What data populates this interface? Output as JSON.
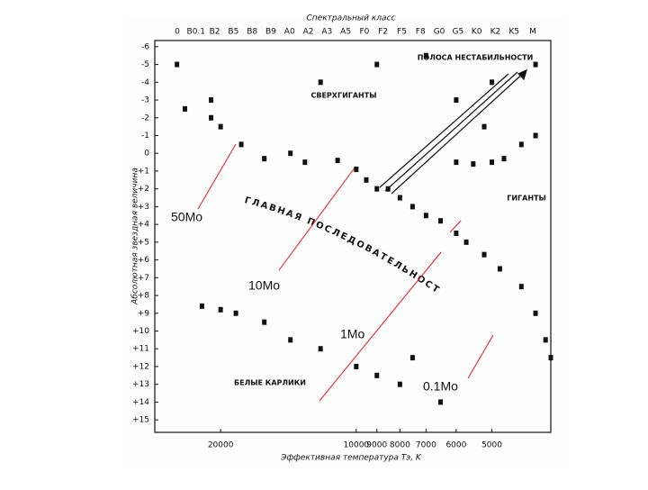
{
  "chart_data": {
    "type": "scatter",
    "title": "Спектральный класс",
    "x_label": "Эффективная температура Tэ, K",
    "y_label": "Абсолютная звездная величина",
    "spectral_classes": [
      "0",
      "B0.1",
      "B2",
      "B5",
      "B8",
      "B9",
      "A0",
      "A2",
      "A3",
      "A5",
      "F0",
      "F2",
      "F5",
      "F8",
      "G0",
      "G5",
      "K0",
      "K2",
      "K5",
      "M"
    ],
    "annotations": [
      "ПОЛОСА НЕСТАБИЛЬНОСТИ",
      "СВЕРХГИГАНТЫ",
      "ГИГАНТЫ",
      "ГЛАВНАЯ ПОСЛЕДОВАТЕЛЬНОСТЬ",
      "БЕЛЫЕ КАРЛИКИ"
    ],
    "mass_labels": [
      "50Mo",
      "10Mo",
      "1Mo",
      "0.1Mo"
    ],
    "mass_color": "#e8191c",
    "color": "#111111",
    "xscale": "log",
    "xlim": [
      28000,
      3700
    ],
    "xticks": [
      20000,
      10000,
      9000,
      8000,
      7000,
      6000,
      5000
    ],
    "ylim": [
      -6.5,
      15.5
    ],
    "yticks": [
      -6,
      -5,
      -4,
      -3,
      -2,
      -1,
      0,
      {
        "value": 1,
        "label": "+1"
      },
      {
        "value": 2,
        "label": "+2"
      },
      {
        "value": 3,
        "label": "+3"
      },
      {
        "value": 4,
        "label": "+4"
      },
      {
        "value": 5,
        "label": "+5"
      },
      {
        "value": 6,
        "label": "+6"
      },
      {
        "value": 7,
        "label": "+7"
      },
      {
        "value": 8,
        "label": "+8"
      },
      {
        "value": 9,
        "label": "+9"
      },
      {
        "value": 10,
        "label": "+10"
      },
      {
        "value": 11,
        "label": "+11"
      },
      {
        "value": 12,
        "label": "+12"
      },
      {
        "value": 13,
        "label": "+13"
      },
      {
        "value": 14,
        "label": "+14"
      },
      {
        "value": 15,
        "label": "+15"
      }
    ],
    "x": [
      25000,
      24000,
      21000,
      21000,
      20000,
      18000,
      16000,
      14000,
      13000,
      11000,
      10000,
      9500,
      9000,
      8500,
      8000,
      7500,
      7000,
      6500,
      6000,
      5700,
      5200,
      4800,
      4300,
      4000,
      3800,
      3700,
      6000,
      5500,
      5000,
      4700,
      4300,
      4000,
      5200,
      12000,
      9000,
      7000,
      5000,
      4000,
      6000,
      22000,
      20000,
      18500,
      16000,
      14000,
      12000,
      10000,
      9000,
      8000,
      7500,
      6500
    ],
    "values": [
      -5,
      -2.5,
      -3,
      -2,
      -1.5,
      -0.5,
      0.3,
      0,
      0.5,
      0.4,
      0.9,
      1.5,
      2,
      2,
      2.5,
      3,
      3.5,
      3.8,
      4.5,
      5,
      5.7,
      6.5,
      7.5,
      9,
      10.5,
      11.5,
      0.5,
      0.6,
      0.5,
      0.3,
      -0.5,
      -1,
      -1.5,
      -4,
      -5,
      -5.5,
      -4,
      -5,
      -3,
      8.6,
      8.8,
      9,
      9.5,
      10.5,
      11,
      12,
      12.5,
      13,
      11.5,
      14
    ]
  }
}
